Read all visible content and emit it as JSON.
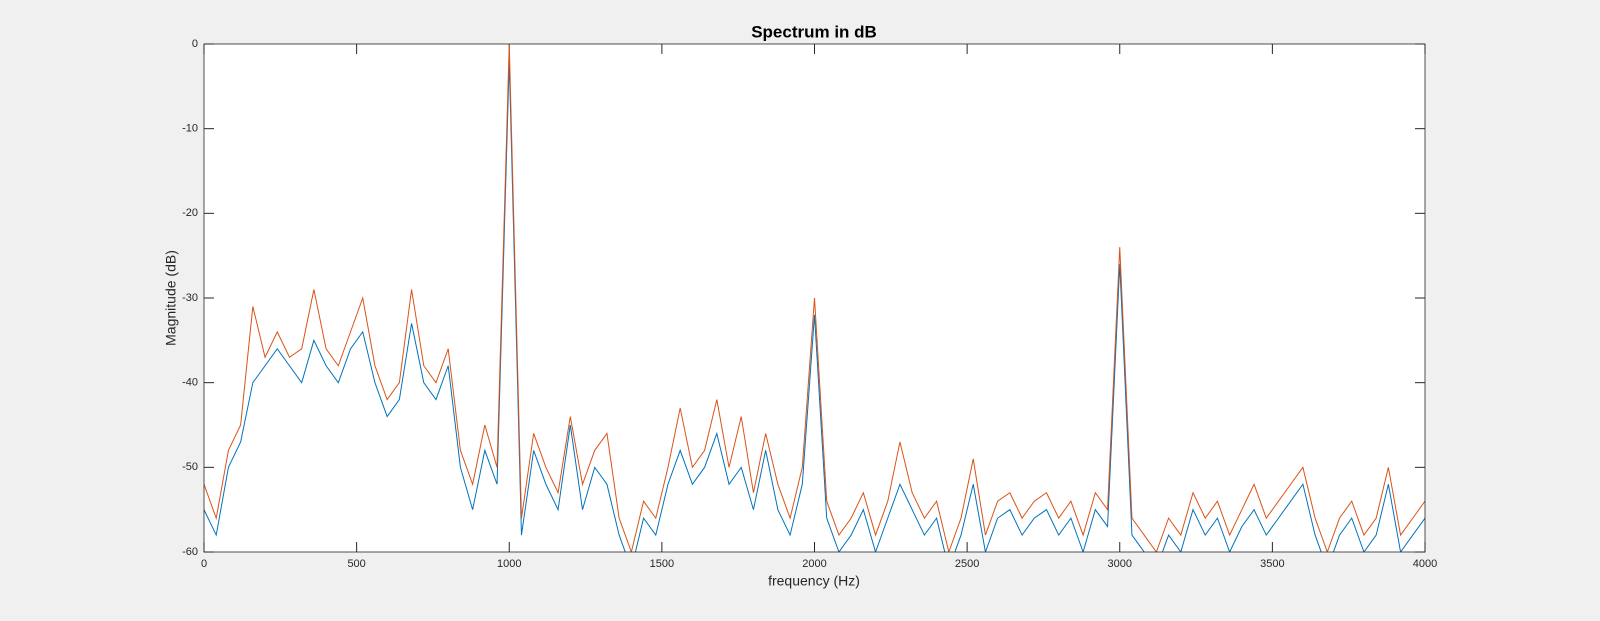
{
  "chart_data": {
    "type": "line",
    "title": "Spectrum in dB",
    "xlabel": "frequency (Hz)",
    "ylabel": "Magnitude (dB)",
    "x": [
      0,
      40,
      80,
      120,
      160,
      200,
      240,
      280,
      320,
      360,
      400,
      440,
      480,
      520,
      560,
      600,
      640,
      680,
      720,
      760,
      800,
      840,
      880,
      920,
      960,
      1000,
      1040,
      1080,
      1120,
      1160,
      1200,
      1240,
      1280,
      1320,
      1360,
      1400,
      1440,
      1480,
      1520,
      1560,
      1600,
      1640,
      1680,
      1720,
      1760,
      1800,
      1840,
      1880,
      1920,
      1960,
      2000,
      2040,
      2080,
      2120,
      2160,
      2200,
      2240,
      2280,
      2320,
      2360,
      2400,
      2440,
      2480,
      2520,
      2560,
      2600,
      2640,
      2680,
      2720,
      2760,
      2800,
      2840,
      2880,
      2920,
      2960,
      3000,
      3040,
      3080,
      3120,
      3160,
      3200,
      3240,
      3280,
      3320,
      3360,
      3400,
      3440,
      3480,
      3520,
      3560,
      3600,
      3640,
      3680,
      3720,
      3760,
      3800,
      3840,
      3880,
      3920,
      3960,
      4000
    ],
    "series": [
      {
        "color": "#0072bd",
        "values": [
          -55,
          -58,
          -50,
          -47,
          -40,
          -38,
          -36,
          -38,
          -40,
          -35,
          -38,
          -40,
          -36,
          -34,
          -40,
          -44,
          -42,
          -33,
          -40,
          -42,
          -38,
          -50,
          -55,
          -48,
          -52,
          -2,
          -58,
          -48,
          -52,
          -55,
          -45,
          -55,
          -50,
          -52,
          -58,
          -62,
          -56,
          -58,
          -52,
          -48,
          -52,
          -50,
          -46,
          -52,
          -50,
          -55,
          -48,
          -55,
          -58,
          -52,
          -32,
          -56,
          -60,
          -58,
          -55,
          -60,
          -56,
          -52,
          -55,
          -58,
          -56,
          -62,
          -58,
          -52,
          -60,
          -56,
          -55,
          -58,
          -56,
          -55,
          -58,
          -56,
          -60,
          -55,
          -57,
          -26,
          -58,
          -60,
          -62,
          -58,
          -60,
          -55,
          -58,
          -56,
          -60,
          -57,
          -55,
          -58,
          -56,
          -54,
          -52,
          -58,
          -62,
          -58,
          -56,
          -60,
          -58,
          -52,
          -60,
          -58,
          -56
        ]
      },
      {
        "color": "#d95319",
        "values": [
          -52,
          -56,
          -48,
          -45,
          -31,
          -37,
          -34,
          -37,
          -36,
          -29,
          -36,
          -38,
          -34,
          -30,
          -38,
          -42,
          -40,
          -29,
          -38,
          -40,
          -36,
          -48,
          -52,
          -45,
          -50,
          0,
          -56,
          -46,
          -50,
          -53,
          -44,
          -52,
          -48,
          -46,
          -56,
          -60,
          -54,
          -56,
          -50,
          -43,
          -50,
          -48,
          -42,
          -50,
          -44,
          -53,
          -46,
          -52,
          -56,
          -50,
          -30,
          -54,
          -58,
          -56,
          -53,
          -58,
          -54,
          -47,
          -53,
          -56,
          -54,
          -60,
          -56,
          -49,
          -58,
          -54,
          -53,
          -56,
          -54,
          -53,
          -56,
          -54,
          -58,
          -53,
          -55,
          -24,
          -56,
          -58,
          -60,
          -56,
          -58,
          -53,
          -56,
          -54,
          -58,
          -55,
          -52,
          -56,
          -54,
          -52,
          -50,
          -56,
          -60,
          -56,
          -54,
          -58,
          -56,
          -50,
          -58,
          -56,
          -54
        ]
      }
    ],
    "xlim": [
      0,
      4000
    ],
    "ylim": [
      -60,
      0
    ],
    "xticks": [
      0,
      500,
      1000,
      1500,
      2000,
      2500,
      3000,
      3500,
      4000
    ],
    "yticks": [
      -60,
      -50,
      -40,
      -30,
      -20,
      -10,
      0
    ],
    "grid": false
  }
}
